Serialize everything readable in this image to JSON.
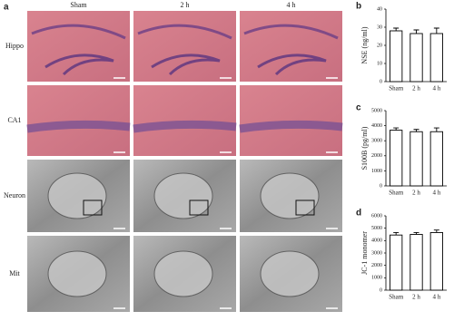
{
  "panel_a": {
    "label": "a",
    "columns": [
      "Sham",
      "2 h",
      "4 h"
    ],
    "rows": [
      "Hippo",
      "CA1",
      "Neuron",
      "Mit"
    ]
  },
  "chart_data": [
    {
      "type": "bar",
      "panel": "b",
      "ylabel": "NSE (ng/ml)",
      "categories": [
        "Sham",
        "2 h",
        "4 h"
      ],
      "values": [
        28,
        26.5,
        26.5
      ],
      "errors": [
        1.5,
        2,
        3
      ],
      "color": "#ffffff",
      "ylim": [
        0,
        40
      ],
      "yticks": [
        0,
        10,
        20,
        30,
        40
      ]
    },
    {
      "type": "bar",
      "panel": "c",
      "ylabel": "S100B (pg/ml)",
      "categories": [
        "Sham",
        "2 h",
        "4 h"
      ],
      "values": [
        3700,
        3600,
        3600
      ],
      "errors": [
        150,
        150,
        250
      ],
      "color": "#ffffff",
      "ylim": [
        0,
        5000
      ],
      "yticks": [
        0,
        1000,
        2000,
        3000,
        4000,
        5000
      ]
    },
    {
      "type": "bar",
      "panel": "d",
      "ylabel": "JC-1 monomer",
      "categories": [
        "Sham",
        "2 h",
        "4 h"
      ],
      "values": [
        4450,
        4500,
        4650
      ],
      "errors": [
        200,
        150,
        200
      ],
      "color": "#ffffff",
      "ylim": [
        0,
        6000
      ],
      "yticks": [
        0,
        1000,
        2000,
        3000,
        4000,
        5000,
        6000
      ]
    }
  ]
}
